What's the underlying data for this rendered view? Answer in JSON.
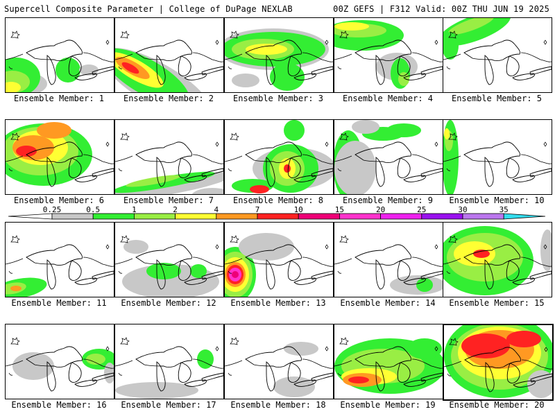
{
  "header": {
    "title": "Supercell Composite Parameter | College of DuPage NEXLAB",
    "run_info": "00Z GEFS | F312 Valid: 00Z THU JUN 19 2025"
  },
  "colorbar": {
    "ticks": [
      "0.25",
      "0.5",
      "1",
      "2",
      "4",
      "7",
      "10",
      "15",
      "20",
      "25",
      "30",
      "35"
    ],
    "colors": [
      "#c8c8c8",
      "#33ee33",
      "#99ee44",
      "#ffff33",
      "#ff9922",
      "#ff2222",
      "#ee0077",
      "#ff33cc",
      "#ee22ee",
      "#9911ee",
      "#bb77ee",
      "#33ddee"
    ]
  },
  "panels": [
    {
      "label": "Ensemble Member: 1"
    },
    {
      "label": "Ensemble Member: 2"
    },
    {
      "label": "Ensemble Member: 3"
    },
    {
      "label": "Ensemble Member: 4"
    },
    {
      "label": "Ensemble Member: 5"
    },
    {
      "label": "Ensemble Member: 6"
    },
    {
      "label": "Ensemble Member: 7"
    },
    {
      "label": "Ensemble Member: 8"
    },
    {
      "label": "Ensemble Member: 9"
    },
    {
      "label": "Ensemble Member: 10"
    },
    {
      "label": "Ensemble Member: 11"
    },
    {
      "label": "Ensemble Member: 12"
    },
    {
      "label": "Ensemble Member: 13"
    },
    {
      "label": "Ensemble Member: 14"
    },
    {
      "label": "Ensemble Member: 15"
    },
    {
      "label": "Ensemble Member: 16"
    },
    {
      "label": "Ensemble Member: 17"
    },
    {
      "label": "Ensemble Member: 18"
    },
    {
      "label": "Ensemble Member: 19"
    },
    {
      "label": "Ensemble Member: 20"
    }
  ]
}
